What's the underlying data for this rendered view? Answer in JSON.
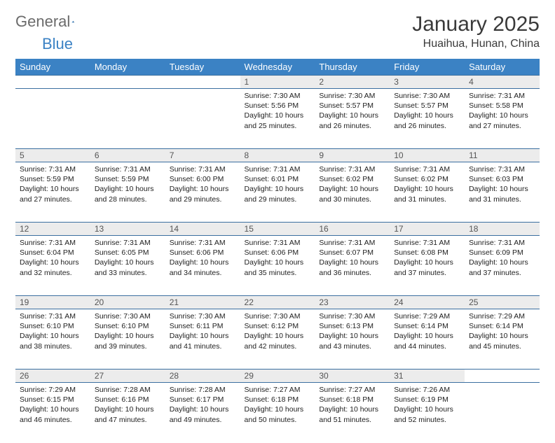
{
  "brand": {
    "part1": "General",
    "part2": "Blue"
  },
  "title": "January 2025",
  "location": "Huaihua, Hunan, China",
  "colors": {
    "header_bg": "#3b82c4",
    "header_text": "#ffffff",
    "daynum_bg": "#ececec",
    "rule": "#3b6fa0",
    "page_bg": "#ffffff",
    "body_text": "#222222",
    "logo_gray": "#6b6b6b",
    "logo_blue": "#3b82c4"
  },
  "dayHeaders": [
    "Sunday",
    "Monday",
    "Tuesday",
    "Wednesday",
    "Thursday",
    "Friday",
    "Saturday"
  ],
  "weeks": [
    [
      null,
      null,
      null,
      {
        "n": "1",
        "sr": "7:30 AM",
        "ss": "5:56 PM",
        "dl": "10 hours and 25 minutes."
      },
      {
        "n": "2",
        "sr": "7:30 AM",
        "ss": "5:57 PM",
        "dl": "10 hours and 26 minutes."
      },
      {
        "n": "3",
        "sr": "7:30 AM",
        "ss": "5:57 PM",
        "dl": "10 hours and 26 minutes."
      },
      {
        "n": "4",
        "sr": "7:31 AM",
        "ss": "5:58 PM",
        "dl": "10 hours and 27 minutes."
      }
    ],
    [
      {
        "n": "5",
        "sr": "7:31 AM",
        "ss": "5:59 PM",
        "dl": "10 hours and 27 minutes."
      },
      {
        "n": "6",
        "sr": "7:31 AM",
        "ss": "5:59 PM",
        "dl": "10 hours and 28 minutes."
      },
      {
        "n": "7",
        "sr": "7:31 AM",
        "ss": "6:00 PM",
        "dl": "10 hours and 29 minutes."
      },
      {
        "n": "8",
        "sr": "7:31 AM",
        "ss": "6:01 PM",
        "dl": "10 hours and 29 minutes."
      },
      {
        "n": "9",
        "sr": "7:31 AM",
        "ss": "6:02 PM",
        "dl": "10 hours and 30 minutes."
      },
      {
        "n": "10",
        "sr": "7:31 AM",
        "ss": "6:02 PM",
        "dl": "10 hours and 31 minutes."
      },
      {
        "n": "11",
        "sr": "7:31 AM",
        "ss": "6:03 PM",
        "dl": "10 hours and 31 minutes."
      }
    ],
    [
      {
        "n": "12",
        "sr": "7:31 AM",
        "ss": "6:04 PM",
        "dl": "10 hours and 32 minutes."
      },
      {
        "n": "13",
        "sr": "7:31 AM",
        "ss": "6:05 PM",
        "dl": "10 hours and 33 minutes."
      },
      {
        "n": "14",
        "sr": "7:31 AM",
        "ss": "6:06 PM",
        "dl": "10 hours and 34 minutes."
      },
      {
        "n": "15",
        "sr": "7:31 AM",
        "ss": "6:06 PM",
        "dl": "10 hours and 35 minutes."
      },
      {
        "n": "16",
        "sr": "7:31 AM",
        "ss": "6:07 PM",
        "dl": "10 hours and 36 minutes."
      },
      {
        "n": "17",
        "sr": "7:31 AM",
        "ss": "6:08 PM",
        "dl": "10 hours and 37 minutes."
      },
      {
        "n": "18",
        "sr": "7:31 AM",
        "ss": "6:09 PM",
        "dl": "10 hours and 37 minutes."
      }
    ],
    [
      {
        "n": "19",
        "sr": "7:31 AM",
        "ss": "6:10 PM",
        "dl": "10 hours and 38 minutes."
      },
      {
        "n": "20",
        "sr": "7:30 AM",
        "ss": "6:10 PM",
        "dl": "10 hours and 39 minutes."
      },
      {
        "n": "21",
        "sr": "7:30 AM",
        "ss": "6:11 PM",
        "dl": "10 hours and 41 minutes."
      },
      {
        "n": "22",
        "sr": "7:30 AM",
        "ss": "6:12 PM",
        "dl": "10 hours and 42 minutes."
      },
      {
        "n": "23",
        "sr": "7:30 AM",
        "ss": "6:13 PM",
        "dl": "10 hours and 43 minutes."
      },
      {
        "n": "24",
        "sr": "7:29 AM",
        "ss": "6:14 PM",
        "dl": "10 hours and 44 minutes."
      },
      {
        "n": "25",
        "sr": "7:29 AM",
        "ss": "6:14 PM",
        "dl": "10 hours and 45 minutes."
      }
    ],
    [
      {
        "n": "26",
        "sr": "7:29 AM",
        "ss": "6:15 PM",
        "dl": "10 hours and 46 minutes."
      },
      {
        "n": "27",
        "sr": "7:28 AM",
        "ss": "6:16 PM",
        "dl": "10 hours and 47 minutes."
      },
      {
        "n": "28",
        "sr": "7:28 AM",
        "ss": "6:17 PM",
        "dl": "10 hours and 49 minutes."
      },
      {
        "n": "29",
        "sr": "7:27 AM",
        "ss": "6:18 PM",
        "dl": "10 hours and 50 minutes."
      },
      {
        "n": "30",
        "sr": "7:27 AM",
        "ss": "6:18 PM",
        "dl": "10 hours and 51 minutes."
      },
      {
        "n": "31",
        "sr": "7:26 AM",
        "ss": "6:19 PM",
        "dl": "10 hours and 52 minutes."
      },
      null
    ]
  ],
  "labels": {
    "sunrise": "Sunrise:",
    "sunset": "Sunset:",
    "daylight": "Daylight:"
  }
}
